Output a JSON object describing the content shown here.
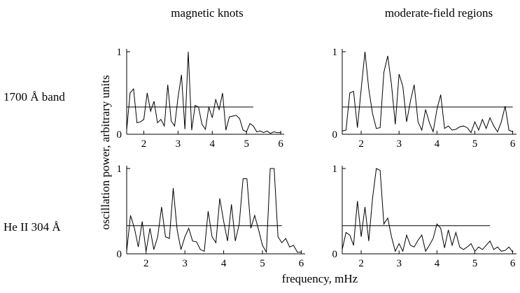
{
  "column_titles": [
    "magnetic knots",
    "moderate-field regions"
  ],
  "row_labels": [
    "1700 Å band",
    "He II 304 Å"
  ],
  "ylabel": "oscillation power, arbitrary units",
  "xlabel": "frequency, mHz",
  "chart_data": [
    {
      "type": "line",
      "title": "",
      "xlim": [
        1.5,
        6.1
      ],
      "ylim": [
        0,
        1
      ],
      "xticks": [
        "2",
        "3",
        "4",
        "5",
        "6"
      ],
      "yticks": [
        "0",
        "1"
      ],
      "threshold": 0.33,
      "threshold_x": [
        1.5,
        5.2
      ],
      "x": [
        1.5,
        1.6,
        1.7,
        1.8,
        1.9,
        2.0,
        2.1,
        2.2,
        2.3,
        2.4,
        2.5,
        2.6,
        2.7,
        2.8,
        2.9,
        3.0,
        3.1,
        3.2,
        3.3,
        3.4,
        3.5,
        3.6,
        3.7,
        3.8,
        3.9,
        4.0,
        4.1,
        4.2,
        4.3,
        4.4,
        4.5,
        4.6,
        4.7,
        4.8,
        4.9,
        5.0,
        5.1,
        5.2,
        5.3,
        5.4,
        5.5,
        5.6,
        5.7,
        5.8,
        5.9,
        6.0
      ],
      "values": [
        0.05,
        0.5,
        0.55,
        0.14,
        0.15,
        0.18,
        0.5,
        0.28,
        0.4,
        0.14,
        0.18,
        0.1,
        0.6,
        0.16,
        0.1,
        0.45,
        0.72,
        0.06,
        1.0,
        0.05,
        0.35,
        0.33,
        0.12,
        0.06,
        0.33,
        0.2,
        0.42,
        0.3,
        0.5,
        0.05,
        0.21,
        0.22,
        0.23,
        0.19,
        0.05,
        0.03,
        0.13,
        0.1,
        0.03,
        0.04,
        0.02,
        0.04,
        0.01,
        0.03,
        0.02,
        0.02
      ]
    },
    {
      "type": "line",
      "title": "",
      "xlim": [
        1.5,
        6.1
      ],
      "ylim": [
        0,
        1
      ],
      "xticks": [
        "2",
        "3",
        "4",
        "5",
        "6"
      ],
      "yticks": [
        "0",
        "1"
      ],
      "threshold": 0.33,
      "threshold_x": [
        1.5,
        6.0
      ],
      "x": [
        1.5,
        1.6,
        1.7,
        1.8,
        1.9,
        2.0,
        2.1,
        2.2,
        2.3,
        2.4,
        2.5,
        2.6,
        2.7,
        2.8,
        2.9,
        3.0,
        3.1,
        3.2,
        3.3,
        3.4,
        3.5,
        3.6,
        3.7,
        3.8,
        3.9,
        4.0,
        4.1,
        4.2,
        4.3,
        4.4,
        4.5,
        4.6,
        4.7,
        4.8,
        4.9,
        5.0,
        5.1,
        5.2,
        5.3,
        5.4,
        5.5,
        5.6,
        5.7,
        5.8,
        5.9,
        6.0
      ],
      "values": [
        0.04,
        0.05,
        0.5,
        0.52,
        0.08,
        0.55,
        1.0,
        0.55,
        0.25,
        0.07,
        0.08,
        0.75,
        0.95,
        0.6,
        0.12,
        0.73,
        0.58,
        0.15,
        0.4,
        0.6,
        0.15,
        0.05,
        0.3,
        0.14,
        0.03,
        0.3,
        0.48,
        0.07,
        0.1,
        0.05,
        0.06,
        0.09,
        0.1,
        0.08,
        0.02,
        0.15,
        0.05,
        0.18,
        0.07,
        0.2,
        0.1,
        0.03,
        0.15,
        0.34,
        0.05,
        0.03
      ]
    },
    {
      "type": "line",
      "title": "",
      "xlim": [
        1.5,
        6.1
      ],
      "ylim": [
        0,
        1
      ],
      "xticks": [
        "2",
        "3",
        "4",
        "5",
        "6"
      ],
      "yticks": [
        "0",
        "1"
      ],
      "threshold": 0.33,
      "threshold_x": [
        1.5,
        5.5
      ],
      "x": [
        1.5,
        1.6,
        1.7,
        1.8,
        1.9,
        2.0,
        2.1,
        2.2,
        2.3,
        2.4,
        2.5,
        2.6,
        2.7,
        2.8,
        2.9,
        3.0,
        3.1,
        3.2,
        3.3,
        3.4,
        3.5,
        3.6,
        3.7,
        3.8,
        3.9,
        4.0,
        4.1,
        4.2,
        4.3,
        4.4,
        4.5,
        4.6,
        4.7,
        4.8,
        4.9,
        5.0,
        5.1,
        5.2,
        5.3,
        5.4,
        5.5,
        5.6,
        5.7,
        5.8,
        5.9,
        6.0
      ],
      "values": [
        0.03,
        0.45,
        0.3,
        0.08,
        0.38,
        0.03,
        0.3,
        0.05,
        0.2,
        0.55,
        0.2,
        0.18,
        0.77,
        0.28,
        0.05,
        0.2,
        0.3,
        0.15,
        0.14,
        0.05,
        0.03,
        0.5,
        0.2,
        0.13,
        0.65,
        0.38,
        0.15,
        0.58,
        0.15,
        0.35,
        0.88,
        0.88,
        0.3,
        0.45,
        0.28,
        0.1,
        0.02,
        1.0,
        1.0,
        0.2,
        0.13,
        0.18,
        0.08,
        0.1,
        0.02,
        0.02
      ]
    },
    {
      "type": "line",
      "title": "",
      "xlim": [
        1.5,
        6.1
      ],
      "ylim": [
        0,
        1
      ],
      "xticks": [
        "2",
        "3",
        "4",
        "5",
        "6"
      ],
      "yticks": [
        "0",
        "1"
      ],
      "threshold": 0.33,
      "threshold_x": [
        1.5,
        5.4
      ],
      "x": [
        1.5,
        1.6,
        1.7,
        1.8,
        1.9,
        2.0,
        2.1,
        2.2,
        2.3,
        2.4,
        2.5,
        2.6,
        2.7,
        2.8,
        2.9,
        3.0,
        3.1,
        3.2,
        3.3,
        3.4,
        3.5,
        3.6,
        3.7,
        3.8,
        3.9,
        4.0,
        4.1,
        4.2,
        4.3,
        4.4,
        4.5,
        4.6,
        4.7,
        4.8,
        4.9,
        5.0,
        5.1,
        5.2,
        5.3,
        5.4,
        5.5,
        5.6,
        5.7,
        5.8,
        5.9,
        6.0
      ],
      "values": [
        0.05,
        0.25,
        0.22,
        0.1,
        0.62,
        0.2,
        0.55,
        0.15,
        0.65,
        1.0,
        0.98,
        0.35,
        0.42,
        0.2,
        0.03,
        0.12,
        0.03,
        0.22,
        0.1,
        0.08,
        0.16,
        0.22,
        0.03,
        0.1,
        0.18,
        0.35,
        0.3,
        0.07,
        0.28,
        0.1,
        0.25,
        0.08,
        0.05,
        0.08,
        0.12,
        0.03,
        0.08,
        0.05,
        0.1,
        0.15,
        0.05,
        0.08,
        0.03,
        0.04,
        0.08,
        0.02
      ]
    }
  ]
}
